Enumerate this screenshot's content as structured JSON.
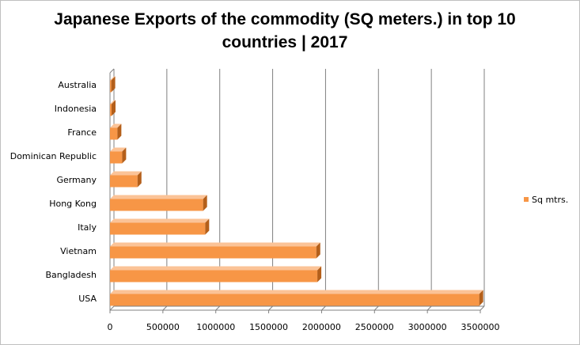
{
  "chart_data": {
    "type": "bar",
    "orientation": "horizontal",
    "title": "Japanese Exports of the commodity (SQ meters.) in top 10 countries | 2017",
    "categories": [
      "USA",
      "Bangladesh",
      "Vietnam",
      "Italy",
      "Hong Kong",
      "Germany",
      "Dominican Republic",
      "France",
      "Indonesia",
      "Australia"
    ],
    "series": [
      {
        "name": "Sq mtrs.",
        "values": [
          3490000,
          1960000,
          1950000,
          900000,
          880000,
          260000,
          115000,
          70000,
          15000,
          12000
        ]
      }
    ],
    "xlabel": "",
    "ylabel": "",
    "xlim": [
      0,
      3500000
    ],
    "x_ticks": [
      "0",
      "500000",
      "1000000",
      "1500000",
      "2000000",
      "2500000",
      "3000000",
      "3500000"
    ],
    "grid": "vertical",
    "legend_position": "right",
    "colors": {
      "bar_face": "#f79646",
      "bar_top": "#fbc397",
      "bar_side": "#b45f1a"
    }
  }
}
